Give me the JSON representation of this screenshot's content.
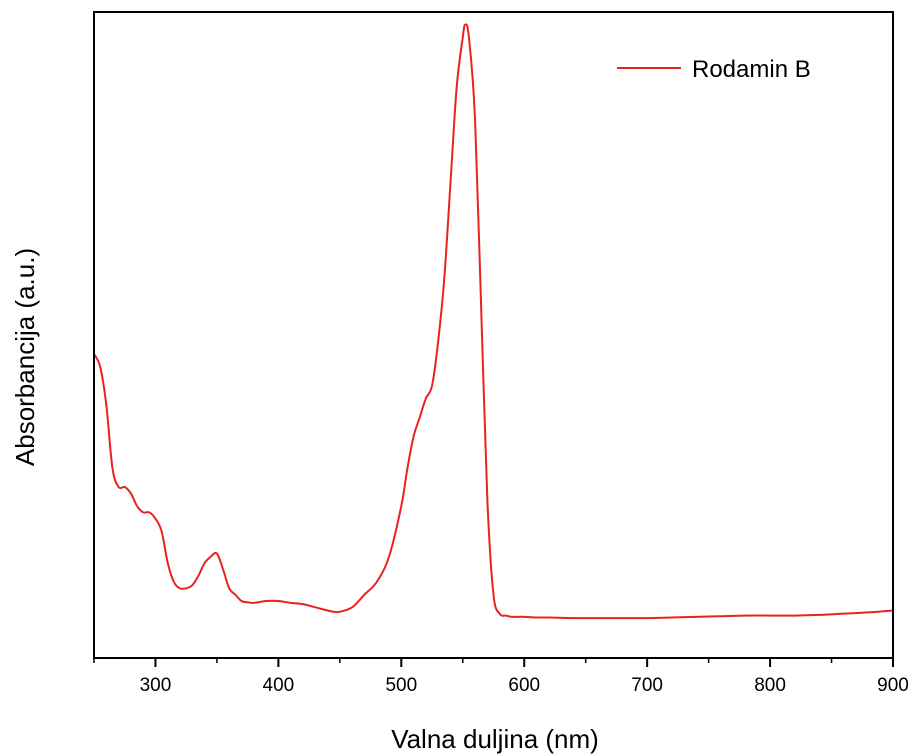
{
  "chart_data": {
    "type": "line",
    "xlabel": "Valna duljina (nm)",
    "ylabel": "Absorbancija (a.u.)",
    "xlim": [
      250,
      900
    ],
    "ylim": [
      0,
      1.02
    ],
    "xticks": [
      300,
      400,
      500,
      600,
      700,
      800,
      900
    ],
    "xtick_labels": [
      "300",
      "400",
      "500",
      "600",
      "700",
      "800",
      "900"
    ],
    "yticks_shown": false,
    "grid": false,
    "legend": {
      "position": "top-right",
      "entries": [
        "Rodamin B"
      ]
    },
    "series": [
      {
        "name": "Rodamin B",
        "color": "#e8231f",
        "x": [
          250,
          255,
          260,
          265,
          270,
          275,
          280,
          285,
          290,
          295,
          300,
          305,
          310,
          315,
          320,
          325,
          330,
          335,
          340,
          345,
          350,
          355,
          360,
          365,
          370,
          375,
          380,
          390,
          400,
          410,
          420,
          430,
          440,
          445,
          450,
          460,
          470,
          480,
          490,
          500,
          505,
          510,
          515,
          520,
          525,
          530,
          535,
          540,
          545,
          550,
          552,
          555,
          560,
          565,
          570,
          575,
          580,
          585,
          590,
          595,
          600,
          610,
          620,
          640,
          660,
          680,
          700,
          720,
          740,
          760,
          780,
          800,
          820,
          840,
          860,
          880,
          900
        ],
        "y": [
          0.48,
          0.46,
          0.4,
          0.3,
          0.27,
          0.27,
          0.26,
          0.24,
          0.23,
          0.23,
          0.22,
          0.2,
          0.15,
          0.12,
          0.11,
          0.11,
          0.115,
          0.13,
          0.15,
          0.16,
          0.165,
          0.14,
          0.11,
          0.1,
          0.09,
          0.088,
          0.087,
          0.09,
          0.09,
          0.087,
          0.085,
          0.08,
          0.075,
          0.073,
          0.073,
          0.08,
          0.1,
          0.12,
          0.16,
          0.24,
          0.3,
          0.35,
          0.38,
          0.41,
          0.43,
          0.5,
          0.6,
          0.75,
          0.9,
          0.98,
          1.0,
          0.98,
          0.85,
          0.55,
          0.25,
          0.1,
          0.07,
          0.067,
          0.065,
          0.065,
          0.065,
          0.064,
          0.064,
          0.063,
          0.063,
          0.063,
          0.063,
          0.064,
          0.065,
          0.066,
          0.067,
          0.067,
          0.067,
          0.068,
          0.07,
          0.072,
          0.075
        ]
      }
    ]
  }
}
